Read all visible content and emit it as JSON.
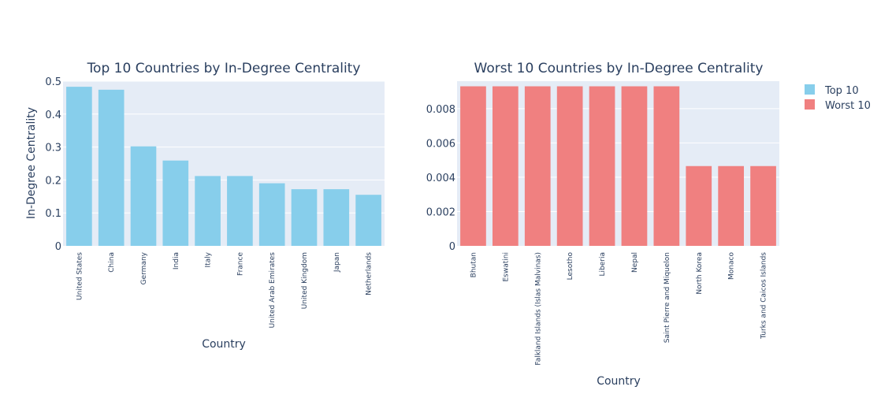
{
  "chart_data": [
    {
      "type": "bar",
      "title": "Top 10 Countries by In-Degree Centrality",
      "xlabel": "Country",
      "ylabel": "In-Degree Centrality",
      "categories": [
        "United States",
        "China",
        "Germany",
        "India",
        "Italy",
        "France",
        "United Arab Emirates",
        "United Kingdom",
        "Japan",
        "Netherlands"
      ],
      "series": [
        {
          "name": "Top 10",
          "color": "#87CEEB",
          "values": [
            0.483,
            0.474,
            0.302,
            0.259,
            0.212,
            0.212,
            0.19,
            0.172,
            0.172,
            0.155
          ]
        }
      ],
      "ylim": [
        0,
        0.5
      ],
      "yticks": [
        0,
        0.1,
        0.2,
        0.3,
        0.4,
        0.5
      ],
      "ytick_labels": [
        "0",
        "0.1",
        "0.2",
        "0.3",
        "0.4",
        "0.5"
      ],
      "grid": true
    },
    {
      "type": "bar",
      "title": "Worst 10 Countries by In-Degree Centrality",
      "xlabel": "Country",
      "ylabel": "",
      "categories": [
        "Bhutan",
        "Eswatini",
        "Falkland Islands (Islas Malvinas)",
        "Lesotho",
        "Liberia",
        "Nepal",
        "Saint Pierre and Miquelon",
        "North Korea",
        "Monaco",
        "Turks and Caicos Islands"
      ],
      "series": [
        {
          "name": "Worst 10",
          "color": "#F08080",
          "values": [
            0.0093,
            0.0093,
            0.0093,
            0.0093,
            0.0093,
            0.0093,
            0.0093,
            0.00465,
            0.00465,
            0.00465
          ]
        }
      ],
      "ylim": [
        0,
        0.0096
      ],
      "yticks": [
        0,
        0.002,
        0.004,
        0.006,
        0.008
      ],
      "ytick_labels": [
        "0",
        "0.002",
        "0.004",
        "0.006",
        "0.008"
      ],
      "grid": true
    }
  ],
  "legend": {
    "placement": "top-right",
    "items": [
      {
        "label": "Top 10",
        "color": "#87CEEB"
      },
      {
        "label": "Worst 10",
        "color": "#F08080"
      }
    ]
  },
  "style": {
    "plot_bg": "#E5ECF6",
    "grid_color": "#ffffff",
    "text_color": "#2a3f5f"
  }
}
